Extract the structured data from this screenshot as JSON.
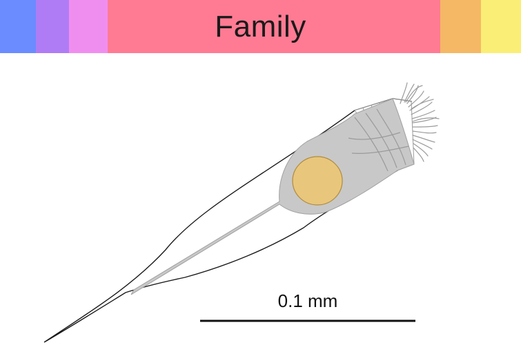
{
  "header": {
    "title": "Family",
    "bands": [
      {
        "name": "blue",
        "color": "#6b8cff"
      },
      {
        "name": "violet",
        "color": "#b07cf5"
      },
      {
        "name": "pink",
        "color": "#f08ef0"
      },
      {
        "name": "rose",
        "color": "#ff7b93"
      },
      {
        "name": "orange",
        "color": "#f5b864"
      },
      {
        "name": "yellow",
        "color": "#fbee76"
      }
    ]
  },
  "figure": {
    "cell_outline_color": "#1a1a1a",
    "cytoplasm_color": "#c8c8c8",
    "nucleus_color": "#e8c77c",
    "cilia_color": "#9a9a9a"
  },
  "scale_bar": {
    "label": "0.1 mm"
  }
}
